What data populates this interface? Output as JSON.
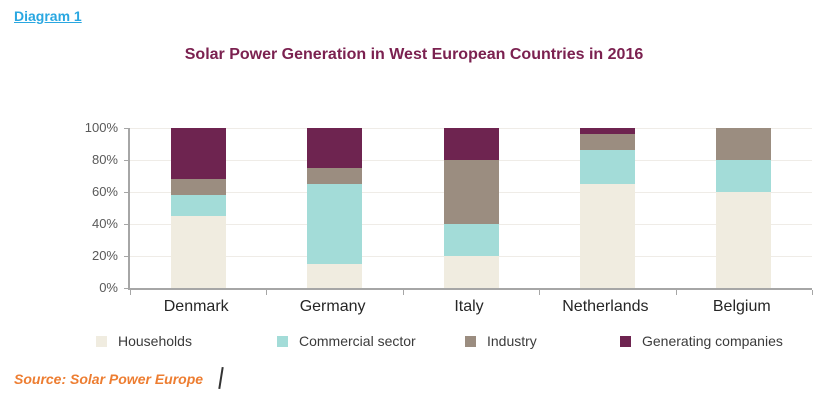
{
  "page": {
    "diagram_label": "Diagram 1",
    "source_text": "Source: Solar Power Europe",
    "cursor_glyph": "/"
  },
  "chart_data": {
    "type": "bar",
    "stacked": true,
    "title": "Solar Power Generation in West European Countries in 2016",
    "categories": [
      "Denmark",
      "Germany",
      "Italy",
      "Netherlands",
      "Belgium"
    ],
    "series": [
      {
        "name": "Households",
        "color": "#F0ECE0",
        "values": [
          45,
          15,
          20,
          65,
          60
        ]
      },
      {
        "name": "Commercial sector",
        "color": "#A3DCD8",
        "values": [
          13,
          50,
          20,
          21,
          20
        ]
      },
      {
        "name": "Industry",
        "color": "#9B8D80",
        "values": [
          10,
          10,
          40,
          10,
          20
        ]
      },
      {
        "name": "Generating companies",
        "color": "#6E2450",
        "values": [
          32,
          25,
          20,
          4,
          0
        ]
      }
    ],
    "ylim": [
      0,
      100
    ],
    "ytick_labels": [
      "0%",
      "20%",
      "40%",
      "60%",
      "80%",
      "100%"
    ],
    "grid": true,
    "legend_position": "bottom",
    "colors": {
      "title": "#7B2150",
      "diagram_label_link": "#29A7E1",
      "source_text": "#ED7D31",
      "axis_line": "#A6A6A6",
      "gridline": "#EFECE7",
      "ytick_label": "#595959",
      "category_label": "#262626",
      "legend_label": "#3B3B3B"
    }
  }
}
